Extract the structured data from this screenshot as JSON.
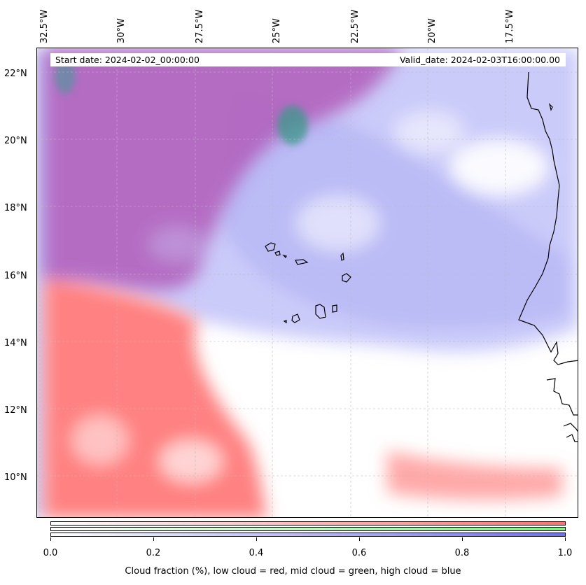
{
  "map": {
    "start_date": "Start date: 2024-02-02_00:00:00",
    "valid_date": "Valid_date: 2024-02-03T16:00:00.00",
    "lon_labels": [
      "32.5°W",
      "30°W",
      "27.5°W",
      "25°W",
      "22.5°W",
      "20°W",
      "17.5°W"
    ],
    "lat_labels": [
      "22°N",
      "20°N",
      "18°N",
      "16°N",
      "14°N",
      "12°N",
      "10°N"
    ],
    "layers": [
      {
        "name": "low cloud",
        "color": "#ff6060"
      },
      {
        "name": "mid cloud",
        "color": "#60e060"
      },
      {
        "name": "high cloud",
        "color": "#6060f0"
      }
    ],
    "colorbar": {
      "ticks": [
        "0.0",
        "0.2",
        "0.4",
        "0.6",
        "0.8",
        "1.0"
      ],
      "label": "Cloud fraction (%), low cloud = red, mid cloud = green, high cloud = blue"
    }
  }
}
